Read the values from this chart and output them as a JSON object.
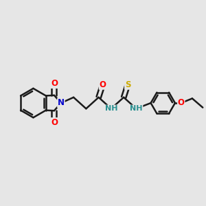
{
  "bg_color": "#e6e6e6",
  "bond_color": "#1a1a1a",
  "bond_width": 1.8,
  "atom_colors": {
    "O": "#ff0000",
    "N": "#0000cc",
    "S": "#ccaa00",
    "H_N": "#2a9090"
  },
  "font_size": 8.5,
  "figsize": [
    3.0,
    3.0
  ],
  "dpi": 100
}
